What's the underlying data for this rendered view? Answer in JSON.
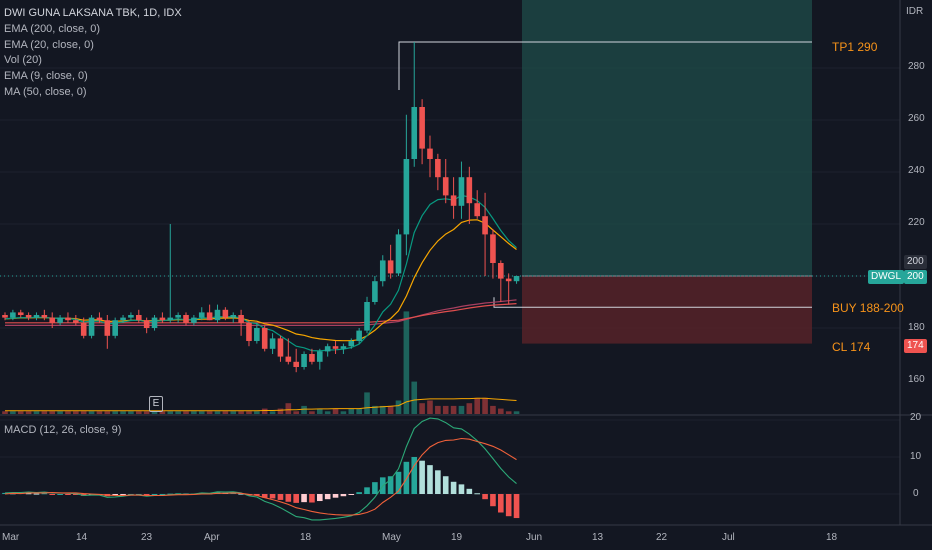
{
  "legend": {
    "title": "DWI GUNA LAKSANA TBK, 1D, IDX",
    "indicators": [
      "EMA (200, close, 0)",
      "EMA (20, close, 0)",
      "Vol (20)",
      "EMA (9, close, 0)",
      "MA (50, close, 0)"
    ],
    "macd": "MACD (12, 26, close, 9)"
  },
  "currency": "IDR",
  "price_axis": [
    "280",
    "260",
    "240",
    "220",
    "180",
    "160"
  ],
  "macd_axis": [
    "20",
    "10",
    "0"
  ],
  "time_axis": [
    "Mar",
    "14",
    "23",
    "Apr",
    "18",
    "May",
    "19",
    "Jun",
    "13",
    "22",
    "Jul",
    "18"
  ],
  "badges": {
    "last_price": "200",
    "ticker": "DWGL",
    "ticker_price": "200",
    "cl_price": "174",
    "level_200": "200"
  },
  "annotations": {
    "tp": "TP1 290",
    "buy": "BUY 188-200",
    "cl": "CL 174"
  },
  "earnings_marker": "E",
  "colors": {
    "bg": "#131722",
    "up": "#26a69a",
    "down": "#ef5350",
    "ema9": "#089981",
    "ema20": "#f7a600",
    "ema200": "#e04e4e",
    "ma50": "#a84060",
    "annot": "#f7931a",
    "macd": "#2ca877",
    "signal": "#f0613a"
  },
  "chart_data": {
    "type": "candlestick",
    "y_range": [
      150,
      296
    ],
    "levels": {
      "tp": 290,
      "entry": 200,
      "buy_low": 188,
      "stop": 174
    },
    "candles": [
      [
        185,
        186,
        183,
        184
      ],
      [
        184,
        187,
        183,
        186
      ],
      [
        186,
        187,
        184,
        185
      ],
      [
        185,
        186,
        183,
        184
      ],
      [
        184,
        186,
        183,
        185
      ],
      [
        185,
        187,
        183,
        184
      ],
      [
        184,
        186,
        180,
        182
      ],
      [
        182,
        185,
        181,
        184
      ],
      [
        184,
        186,
        182,
        183
      ],
      [
        183,
        185,
        181,
        182
      ],
      [
        182,
        184,
        176,
        177
      ],
      [
        177,
        185,
        176,
        184
      ],
      [
        184,
        186,
        182,
        183
      ],
      [
        183,
        185,
        172,
        177
      ],
      [
        177,
        184,
        176,
        183
      ],
      [
        183,
        185,
        182,
        184
      ],
      [
        184,
        186,
        183,
        185
      ],
      [
        185,
        187,
        182,
        183
      ],
      [
        183,
        184,
        178,
        180
      ],
      [
        180,
        185,
        179,
        184
      ],
      [
        184,
        186,
        182,
        183
      ],
      [
        183,
        220,
        182,
        184
      ],
      [
        184,
        186,
        182,
        185
      ],
      [
        185,
        186,
        181,
        182
      ],
      [
        182,
        185,
        181,
        184
      ],
      [
        184,
        188,
        183,
        186
      ],
      [
        186,
        189,
        183,
        183
      ],
      [
        183,
        189,
        182,
        187
      ],
      [
        187,
        188,
        183,
        184
      ],
      [
        184,
        186,
        182,
        185
      ],
      [
        185,
        187,
        177,
        182
      ],
      [
        182,
        183,
        173,
        175
      ],
      [
        175,
        182,
        174,
        180
      ],
      [
        180,
        181,
        171,
        172
      ],
      [
        172,
        178,
        170,
        176
      ],
      [
        176,
        177,
        167,
        169
      ],
      [
        169,
        176,
        166,
        167
      ],
      [
        167,
        172,
        163,
        165
      ],
      [
        165,
        171,
        164,
        170
      ],
      [
        170,
        172,
        166,
        167
      ],
      [
        167,
        172,
        164,
        171
      ],
      [
        171,
        174,
        169,
        173
      ],
      [
        173,
        175,
        170,
        172
      ],
      [
        172,
        174,
        170,
        173
      ],
      [
        173,
        176,
        172,
        175
      ],
      [
        175,
        180,
        174,
        179
      ],
      [
        179,
        192,
        178,
        190
      ],
      [
        190,
        200,
        189,
        198
      ],
      [
        198,
        208,
        196,
        206
      ],
      [
        206,
        212,
        199,
        201
      ],
      [
        201,
        218,
        200,
        216
      ],
      [
        216,
        262,
        208,
        245
      ],
      [
        245,
        290,
        242,
        265
      ],
      [
        265,
        268,
        243,
        249
      ],
      [
        249,
        254,
        238,
        245
      ],
      [
        245,
        247,
        233,
        238
      ],
      [
        238,
        245,
        228,
        231
      ],
      [
        231,
        238,
        222,
        227
      ],
      [
        227,
        244,
        222,
        238
      ],
      [
        238,
        242,
        220,
        228
      ],
      [
        228,
        233,
        222,
        223
      ],
      [
        223,
        232,
        200,
        216
      ],
      [
        216,
        218,
        199,
        205
      ],
      [
        205,
        206,
        190,
        199
      ],
      [
        199,
        201,
        189,
        198
      ],
      [
        198,
        200,
        197,
        200
      ]
    ],
    "volume": [
      1,
      1,
      1,
      1,
      1,
      1,
      1,
      1,
      1,
      1,
      1,
      1,
      1,
      1,
      1,
      1,
      1,
      1,
      1,
      1,
      1,
      1,
      1,
      1,
      1,
      1,
      1,
      1,
      1,
      1,
      1,
      1,
      1,
      2,
      1,
      2,
      4,
      1,
      3,
      1,
      2,
      1,
      2,
      1,
      2,
      2,
      8,
      3,
      3,
      3,
      5,
      38,
      12,
      4,
      5,
      3,
      3,
      3,
      3,
      4,
      6,
      6,
      3,
      2,
      1,
      1
    ],
    "ema9": [
      183.5,
      183.8,
      184,
      184,
      184.1,
      184.1,
      183.7,
      183.8,
      183.6,
      183.3,
      182.3,
      182.6,
      182.7,
      181.6,
      181.9,
      182.3,
      182.9,
      183,
      182.4,
      182.7,
      182.8,
      183.1,
      183.5,
      183.2,
      183.3,
      183.9,
      183.8,
      184.4,
      184.3,
      184.4,
      183.9,
      182.1,
      181.7,
      179.8,
      179,
      177,
      175,
      173,
      172.4,
      171.3,
      171.2,
      171.5,
      171.6,
      171.9,
      172.5,
      173.8,
      177,
      181.2,
      186.2,
      189.1,
      194.5,
      204.6,
      216.7,
      223.2,
      227.5,
      229.4,
      229.7,
      229.2,
      231,
      230.4,
      229,
      226.4,
      222.1,
      217.5,
      213.6,
      210.9
    ],
    "ema20": [
      183.5,
      183.7,
      183.9,
      183.9,
      184,
      184,
      183.8,
      183.8,
      183.7,
      183.6,
      183,
      183.1,
      183.1,
      182.5,
      182.6,
      182.7,
      183,
      183,
      182.7,
      182.9,
      182.9,
      183,
      183.2,
      183.1,
      183.2,
      183.4,
      183.4,
      183.8,
      183.8,
      183.9,
      183.7,
      182.9,
      182.6,
      181.6,
      181.1,
      180.1,
      179,
      177.7,
      177.2,
      176.3,
      175.8,
      175.5,
      175.2,
      175.1,
      175.1,
      175.5,
      177,
      179.1,
      181.8,
      183.6,
      186.6,
      192.3,
      199.3,
      205.1,
      209.9,
      213.5,
      216.1,
      217.9,
      220.6,
      221.5,
      221.6,
      220.3,
      217.7,
      215.1,
      212.5,
      210.2
    ],
    "ema200": [
      182,
      182,
      182,
      182,
      182,
      182,
      182,
      182,
      182,
      182,
      182,
      182,
      182,
      182,
      182,
      182,
      182,
      182,
      182,
      182,
      182,
      182,
      182,
      182,
      182,
      182,
      182,
      182,
      182,
      182,
      182,
      182,
      182,
      182,
      182,
      182,
      182,
      182,
      182,
      182,
      182,
      182,
      182,
      182,
      182,
      182,
      182.2,
      182.4,
      182.6,
      182.8,
      183,
      183.6,
      184.2,
      184.8,
      185.3,
      185.8,
      186.3,
      186.7,
      187.2,
      187.7,
      188.1,
      188.5,
      188.8,
      189,
      189.2,
      189.4
    ],
    "ma50": [
      181,
      181,
      181,
      181,
      181,
      181,
      181,
      181,
      181,
      181,
      181,
      181,
      181,
      181,
      181,
      181,
      181,
      181,
      181,
      181,
      181,
      181,
      181,
      181,
      181,
      181,
      181,
      181,
      181,
      181,
      181,
      181,
      181,
      181,
      181,
      181,
      181,
      181,
      181,
      181,
      181,
      181,
      181,
      181,
      181,
      181,
      181.2,
      181.5,
      181.8,
      182.1,
      182.5,
      183.3,
      184.2,
      185,
      185.8,
      186.6,
      187.2,
      187.7,
      188.3,
      188.8,
      189.2,
      189.6,
      189.9,
      190.2,
      190.5,
      190.8
    ],
    "volume_ma": [
      1.2,
      1.2,
      1.2,
      1.2,
      1.2,
      1.2,
      1.2,
      1.2,
      1.2,
      1.2,
      1.2,
      1.2,
      1.2,
      1.2,
      1.2,
      1.2,
      1.2,
      1.2,
      1.2,
      1.2,
      1.2,
      1.2,
      1.2,
      1.2,
      1.2,
      1.2,
      1.2,
      1.2,
      1.2,
      1.2,
      1.2,
      1.2,
      1.2,
      1.3,
      1.3,
      1.4,
      1.6,
      1.6,
      1.8,
      1.8,
      1.9,
      1.9,
      2,
      2,
      2,
      2,
      2.3,
      2.5,
      2.7,
      2.9,
      3.1,
      4.5,
      5.2,
      5.4,
      5.6,
      5.6,
      5.6,
      5.6,
      5.7,
      5.7,
      5.8,
      5.8,
      5.6,
      5.4,
      5.2,
      5
    ],
    "macd_hist": [
      0.3,
      0.2,
      0.3,
      0.2,
      0.1,
      0.2,
      -0.1,
      0,
      -0.1,
      -0.2,
      -0.5,
      -0.3,
      -0.2,
      -0.6,
      -0.4,
      -0.2,
      0,
      0,
      -0.2,
      0,
      0,
      0.1,
      0.2,
      0.1,
      0.1,
      0.3,
      0.2,
      0.4,
      0.3,
      0.3,
      0.1,
      -0.4,
      -0.4,
      -1,
      -1.2,
      -1.6,
      -2.1,
      -2.4,
      -2.2,
      -2.3,
      -1.9,
      -1.4,
      -1,
      -0.6,
      -0.2,
      0.5,
      1.8,
      3.2,
      4.5,
      4.8,
      6,
      8.7,
      10,
      9,
      7.8,
      6.4,
      4.8,
      3.3,
      2.6,
      1.4,
      0.2,
      -1.4,
      -3.3,
      -5,
      -6,
      -6.5
    ],
    "macd_line": [
      0.3,
      0.4,
      0.4,
      0.5,
      0.4,
      0.5,
      0.3,
      0.3,
      0.2,
      0.1,
      -0.4,
      -0.3,
      -0.3,
      -0.9,
      -0.8,
      -0.6,
      -0.3,
      -0.3,
      -0.6,
      -0.4,
      -0.4,
      -0.2,
      0,
      -0.1,
      0,
      0.3,
      0.2,
      0.6,
      0.5,
      0.6,
      0.3,
      -0.5,
      -0.8,
      -2,
      -2.7,
      -3.7,
      -4.9,
      -6.1,
      -6.4,
      -7,
      -7,
      -6.8,
      -6.6,
      -6.3,
      -5.9,
      -5,
      -3.2,
      -0.9,
      2.2,
      3.9,
      6.8,
      12.8,
      17.7,
      19.6,
      20.5,
      20.3,
      19.3,
      17.9,
      17.6,
      16.2,
      14.4,
      12.2,
      9.6,
      6.9,
      4.6,
      2.8
    ],
    "signal_line": [
      0,
      0.2,
      0.1,
      0.3,
      0.3,
      0.3,
      0.4,
      0.3,
      0.3,
      0.3,
      0.1,
      0,
      -0.1,
      -0.3,
      -0.4,
      -0.4,
      -0.3,
      -0.3,
      -0.4,
      -0.4,
      -0.4,
      -0.3,
      -0.2,
      -0.2,
      -0.1,
      0,
      0,
      0.2,
      0.2,
      0.3,
      0.2,
      -0.1,
      -0.4,
      -1,
      -1.5,
      -2.1,
      -2.8,
      -3.7,
      -4.2,
      -4.7,
      -5.1,
      -5.4,
      -5.6,
      -5.7,
      -5.7,
      -5.5,
      -5,
      -4.1,
      -2.3,
      -0.9,
      0.8,
      4.1,
      7.7,
      10.6,
      12.7,
      13.9,
      14.5,
      14.6,
      15,
      14.8,
      14.2,
      13.6,
      12.9,
      11.9,
      10.6,
      9.3
    ]
  }
}
